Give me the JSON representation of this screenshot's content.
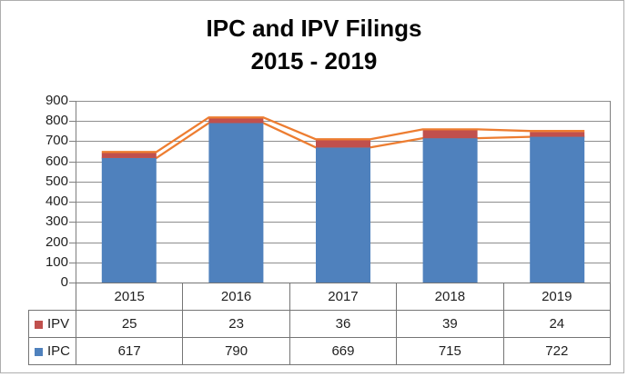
{
  "title": {
    "line1": "IPC and IPV Filings",
    "line2": "2015 - 2019"
  },
  "chart_data": {
    "type": "bar",
    "subtype": "stacked-column-with-line-overlay",
    "title": "IPC and IPV Filings 2015 - 2019",
    "categories": [
      "2015",
      "2016",
      "2017",
      "2018",
      "2019"
    ],
    "series": [
      {
        "name": "IPC",
        "values": [
          617,
          790,
          669,
          715,
          722
        ],
        "color": "#4F81BD"
      },
      {
        "name": "IPV",
        "values": [
          25,
          23,
          36,
          39,
          24
        ],
        "color": "#C0504D"
      }
    ],
    "overlay_line": {
      "color": "#ED7D31",
      "description": "double orange line tracing stacked totals (IPC+IPV) and IPC segment tops",
      "totals": [
        642,
        813,
        705,
        754,
        746
      ]
    },
    "xlabel": "",
    "ylabel": "",
    "ylim": [
      0,
      900
    ],
    "ytick_step": 100,
    "yticks": [
      "900",
      "800",
      "700",
      "600",
      "500",
      "400",
      "300",
      "200",
      "100",
      "0"
    ],
    "grid": true,
    "legend_position": "data-table-left",
    "grid_color": "#8E8E8E",
    "axis_color": "#7F7F7F"
  },
  "data_table": {
    "rows": [
      {
        "label": "IPV",
        "swatch_color": "#C0504D",
        "values": [
          "25",
          "23",
          "36",
          "39",
          "24"
        ]
      },
      {
        "label": "IPC",
        "swatch_color": "#4F81BD",
        "values": [
          "617",
          "790",
          "669",
          "715",
          "722"
        ]
      }
    ]
  }
}
